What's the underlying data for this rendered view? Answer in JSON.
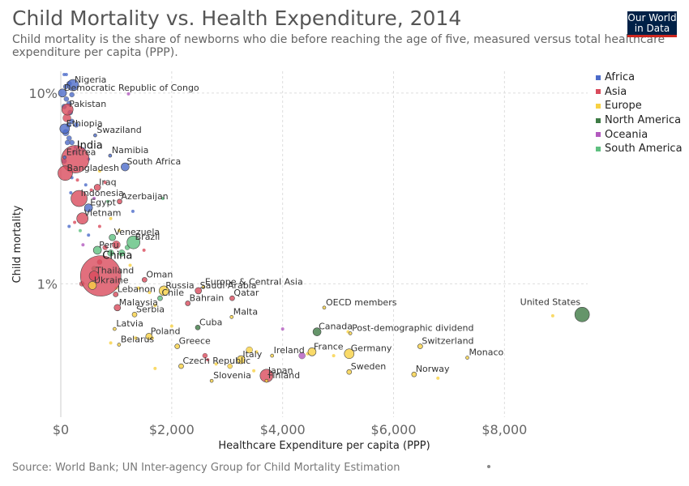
{
  "header": {
    "title": "Child Mortality vs. Health Expenditure, 2014",
    "subtitle": "Child mortality is the share of newborns who die before reaching the age of five, measured versus total healthcare expenditure per capita (PPP).",
    "logo_line1": "Our World",
    "logo_line2": "in Data"
  },
  "footer": {
    "source": "Source: World Bank; UN Inter-agency Group for Child Mortality Estimation"
  },
  "colors": {
    "Africa": "#4c6bc9",
    "Asia": "#d94b5c",
    "Europe": "#f7d143",
    "North America": "#3e7b45",
    "Oceania": "#b35abf",
    "South America": "#5fc080"
  },
  "chart_data": {
    "type": "scatter",
    "title": "Child Mortality vs. Health Expenditure, 2014",
    "xlabel": "Healthcare Expenditure per capita (PPP)",
    "ylabel": "Child mortality",
    "x_scale": "linear",
    "y_scale": "log",
    "xlim": [
      0,
      9500
    ],
    "ylim": [
      0.2,
      13
    ],
    "x_ticks": [
      "$0",
      "$2,000",
      "$4,000",
      "$6,000",
      "$8,000"
    ],
    "x_tick_values": [
      0,
      2000,
      4000,
      6000,
      8000
    ],
    "y_ticks": [
      "1%",
      "10%"
    ],
    "y_tick_values": [
      1,
      10
    ],
    "grid": true,
    "legend_position": "right",
    "legend": [
      "Africa",
      "Asia",
      "Europe",
      "North America",
      "Oceania",
      "South America"
    ],
    "points": [
      {
        "label": "Nigeria",
        "x": 220,
        "y": 11,
        "region": "Africa",
        "size": 7
      },
      {
        "label": "Democratic Republic of Congo",
        "x": 30,
        "y": 10,
        "region": "Africa",
        "size": 5
      },
      {
        "label": "Pakistan",
        "x": 120,
        "y": 8.2,
        "region": "Asia",
        "size": 7
      },
      {
        "label": "Ethiopia",
        "x": 70,
        "y": 6.5,
        "region": "Africa",
        "size": 6
      },
      {
        "label": "Swaziland",
        "x": 620,
        "y": 6.0,
        "region": "Africa",
        "size": 2
      },
      {
        "label": "India",
        "x": 260,
        "y": 4.5,
        "region": "Asia",
        "size": 17
      },
      {
        "label": "Namibia",
        "x": 890,
        "y": 4.7,
        "region": "Africa",
        "size": 2
      },
      {
        "label": "Eritrea",
        "x": 70,
        "y": 4.6,
        "region": "Africa",
        "size": 2
      },
      {
        "label": "South Africa",
        "x": 1160,
        "y": 4.1,
        "region": "Africa",
        "size": 5
      },
      {
        "label": "Bangladesh",
        "x": 80,
        "y": 3.8,
        "region": "Asia",
        "size": 9
      },
      {
        "label": "Iraq",
        "x": 660,
        "y": 3.2,
        "region": "Asia",
        "size": 4
      },
      {
        "label": "Indonesia",
        "x": 330,
        "y": 2.8,
        "region": "Asia",
        "size": 10
      },
      {
        "label": "Azerbaijan",
        "x": 1060,
        "y": 2.7,
        "region": "Asia",
        "size": 3
      },
      {
        "label": "Egypt",
        "x": 500,
        "y": 2.5,
        "region": "Africa",
        "size": 5
      },
      {
        "label": "Vietnam",
        "x": 390,
        "y": 2.2,
        "region": "Asia",
        "size": 7
      },
      {
        "label": "Venezuela",
        "x": 930,
        "y": 1.75,
        "region": "South America",
        "size": 4
      },
      {
        "label": "Peru",
        "x": 660,
        "y": 1.5,
        "region": "South America",
        "size": 5
      },
      {
        "label": "Brazil",
        "x": 1310,
        "y": 1.65,
        "region": "South America",
        "size": 8
      },
      {
        "label": "China",
        "x": 720,
        "y": 1.1,
        "region": "Asia",
        "size": 25
      },
      {
        "label": "Thailand",
        "x": 600,
        "y": 1.1,
        "region": "Asia",
        "size": 6
      },
      {
        "label": "Oman",
        "x": 1510,
        "y": 1.05,
        "region": "Asia",
        "size": 3
      },
      {
        "label": "Ukraine",
        "x": 570,
        "y": 0.98,
        "region": "Europe",
        "size": 5
      },
      {
        "label": "Europe & Central Asia",
        "x": 2570,
        "y": 0.96,
        "region": "Europe",
        "size": 2
      },
      {
        "label": "Russia",
        "x": 1860,
        "y": 0.92,
        "region": "Europe",
        "size": 6
      },
      {
        "label": "Saudi Arabia",
        "x": 2480,
        "y": 0.92,
        "region": "Asia",
        "size": 4
      },
      {
        "label": "Lebanon",
        "x": 990,
        "y": 0.88,
        "region": "Asia",
        "size": 3
      },
      {
        "label": "Chile",
        "x": 1790,
        "y": 0.84,
        "region": "South America",
        "size": 3
      },
      {
        "label": "Qatar",
        "x": 3090,
        "y": 0.84,
        "region": "Asia",
        "size": 3
      },
      {
        "label": "Bahrain",
        "x": 2290,
        "y": 0.79,
        "region": "Asia",
        "size": 3
      },
      {
        "label": "Malaysia",
        "x": 1020,
        "y": 0.75,
        "region": "Asia",
        "size": 4
      },
      {
        "label": "OECD members",
        "x": 4750,
        "y": 0.75,
        "region": "Europe",
        "size": 2
      },
      {
        "label": "Serbia",
        "x": 1330,
        "y": 0.69,
        "region": "Europe",
        "size": 3
      },
      {
        "label": "United States",
        "x": 9400,
        "y": 0.69,
        "region": "North America",
        "size": 9
      },
      {
        "label": "Malta",
        "x": 3080,
        "y": 0.67,
        "region": "Europe",
        "size": 2
      },
      {
        "label": "Latvia",
        "x": 970,
        "y": 0.58,
        "region": "Europe",
        "size": 2
      },
      {
        "label": "Cuba",
        "x": 2470,
        "y": 0.59,
        "region": "North America",
        "size": 3
      },
      {
        "label": "Canada",
        "x": 4620,
        "y": 0.56,
        "region": "North America",
        "size": 5
      },
      {
        "label": "Post-demographic dividend",
        "x": 5220,
        "y": 0.55,
        "region": "Europe",
        "size": 2
      },
      {
        "label": "Poland",
        "x": 1590,
        "y": 0.53,
        "region": "Europe",
        "size": 4
      },
      {
        "label": "Belarus",
        "x": 1050,
        "y": 0.48,
        "region": "Europe",
        "size": 2
      },
      {
        "label": "Greece",
        "x": 2100,
        "y": 0.47,
        "region": "Europe",
        "size": 3
      },
      {
        "label": "Switzerland",
        "x": 6480,
        "y": 0.47,
        "region": "Europe",
        "size": 3
      },
      {
        "label": "France",
        "x": 4530,
        "y": 0.44,
        "region": "Europe",
        "size": 5
      },
      {
        "label": "Germany",
        "x": 5200,
        "y": 0.43,
        "region": "Europe",
        "size": 6
      },
      {
        "label": "Ireland",
        "x": 3810,
        "y": 0.42,
        "region": "Europe",
        "size": 2
      },
      {
        "label": "Italy",
        "x": 3250,
        "y": 0.4,
        "region": "Europe",
        "size": 5
      },
      {
        "label": "Monaco",
        "x": 7330,
        "y": 0.41,
        "region": "Europe",
        "size": 2
      },
      {
        "label": "Czech Republic",
        "x": 2170,
        "y": 0.37,
        "region": "Europe",
        "size": 3
      },
      {
        "label": "Japan",
        "x": 3710,
        "y": 0.33,
        "region": "Asia",
        "size": 8
      },
      {
        "label": "Sweden",
        "x": 5200,
        "y": 0.345,
        "region": "Europe",
        "size": 3
      },
      {
        "label": "Norway",
        "x": 6370,
        "y": 0.335,
        "region": "Europe",
        "size": 3
      },
      {
        "label": "Slovenia",
        "x": 2720,
        "y": 0.31,
        "region": "Europe",
        "size": 2
      },
      {
        "label": "Finland",
        "x": 3710,
        "y": 0.31,
        "region": "Europe",
        "size": 2
      }
    ],
    "unlabeled_points": [
      {
        "x": 60,
        "y": 12.5,
        "region": "Africa",
        "size": 2
      },
      {
        "x": 100,
        "y": 12.5,
        "region": "Africa",
        "size": 2
      },
      {
        "x": 150,
        "y": 11.2,
        "region": "Africa",
        "size": 3
      },
      {
        "x": 90,
        "y": 10.8,
        "region": "Africa",
        "size": 3
      },
      {
        "x": 200,
        "y": 9.8,
        "region": "Africa",
        "size": 3
      },
      {
        "x": 100,
        "y": 9.3,
        "region": "Africa",
        "size": 3
      },
      {
        "x": 150,
        "y": 8.8,
        "region": "Africa",
        "size": 3
      },
      {
        "x": 60,
        "y": 8.5,
        "region": "Africa",
        "size": 3
      },
      {
        "x": 170,
        "y": 7.9,
        "region": "Africa",
        "size": 3
      },
      {
        "x": 110,
        "y": 7.4,
        "region": "Asia",
        "size": 5
      },
      {
        "x": 200,
        "y": 7.1,
        "region": "Africa",
        "size": 3
      },
      {
        "x": 280,
        "y": 6.8,
        "region": "Africa",
        "size": 3
      },
      {
        "x": 140,
        "y": 6.8,
        "region": "Africa",
        "size": 3
      },
      {
        "x": 90,
        "y": 6.2,
        "region": "Africa",
        "size": 4
      },
      {
        "x": 150,
        "y": 5.8,
        "region": "Africa",
        "size": 3
      },
      {
        "x": 200,
        "y": 5.5,
        "region": "Africa",
        "size": 3
      },
      {
        "x": 120,
        "y": 5.5,
        "region": "Africa",
        "size": 3
      },
      {
        "x": 260,
        "y": 5.2,
        "region": "Africa",
        "size": 2
      },
      {
        "x": 400,
        "y": 5.1,
        "region": "Africa",
        "size": 2
      },
      {
        "x": 250,
        "y": 4.9,
        "region": "Africa",
        "size": 3
      },
      {
        "x": 500,
        "y": 4.5,
        "region": "Africa",
        "size": 2
      },
      {
        "x": 60,
        "y": 4.4,
        "region": "Africa",
        "size": 3
      },
      {
        "x": 700,
        "y": 3.9,
        "region": "Europe",
        "size": 2
      },
      {
        "x": 200,
        "y": 3.6,
        "region": "Africa",
        "size": 2
      },
      {
        "x": 300,
        "y": 3.5,
        "region": "Asia",
        "size": 2
      },
      {
        "x": 450,
        "y": 3.3,
        "region": "Africa",
        "size": 2
      },
      {
        "x": 550,
        "y": 3.1,
        "region": "Asia",
        "size": 2
      },
      {
        "x": 800,
        "y": 3.4,
        "region": "Asia",
        "size": 2
      },
      {
        "x": 180,
        "y": 3.0,
        "region": "Africa",
        "size": 2
      },
      {
        "x": 600,
        "y": 2.8,
        "region": "Oceania",
        "size": 2
      },
      {
        "x": 850,
        "y": 2.7,
        "region": "South America",
        "size": 2
      },
      {
        "x": 1300,
        "y": 2.4,
        "region": "Africa",
        "size": 2
      },
      {
        "x": 900,
        "y": 2.2,
        "region": "Europe",
        "size": 2
      },
      {
        "x": 250,
        "y": 2.1,
        "region": "Asia",
        "size": 2
      },
      {
        "x": 150,
        "y": 2.0,
        "region": "Africa",
        "size": 2
      },
      {
        "x": 350,
        "y": 1.9,
        "region": "South America",
        "size": 2
      },
      {
        "x": 500,
        "y": 1.8,
        "region": "Africa",
        "size": 2
      },
      {
        "x": 700,
        "y": 2.0,
        "region": "Asia",
        "size": 2
      },
      {
        "x": 1050,
        "y": 1.9,
        "region": "Europe",
        "size": 2
      },
      {
        "x": 400,
        "y": 1.6,
        "region": "Oceania",
        "size": 2
      },
      {
        "x": 800,
        "y": 1.55,
        "region": "Asia",
        "size": 3
      },
      {
        "x": 1000,
        "y": 1.6,
        "region": "Asia",
        "size": 5
      },
      {
        "x": 1200,
        "y": 1.55,
        "region": "South America",
        "size": 3
      },
      {
        "x": 900,
        "y": 1.45,
        "region": "South America",
        "size": 4
      },
      {
        "x": 1100,
        "y": 1.45,
        "region": "South America",
        "size": 4
      },
      {
        "x": 1500,
        "y": 1.5,
        "region": "Asia",
        "size": 2
      },
      {
        "x": 700,
        "y": 1.3,
        "region": "Asia",
        "size": 3
      },
      {
        "x": 1250,
        "y": 1.25,
        "region": "Europe",
        "size": 2
      },
      {
        "x": 600,
        "y": 1.2,
        "region": "South America",
        "size": 3
      },
      {
        "x": 380,
        "y": 1.0,
        "region": "Asia",
        "size": 3
      },
      {
        "x": 1000,
        "y": 0.95,
        "region": "Europe",
        "size": 2
      },
      {
        "x": 1400,
        "y": 0.95,
        "region": "Europe",
        "size": 2
      },
      {
        "x": 1600,
        "y": 0.9,
        "region": "Europe",
        "size": 2
      },
      {
        "x": 1700,
        "y": 0.77,
        "region": "Europe",
        "size": 2
      },
      {
        "x": 2000,
        "y": 0.6,
        "region": "Europe",
        "size": 2
      },
      {
        "x": 1350,
        "y": 0.52,
        "region": "Europe",
        "size": 2
      },
      {
        "x": 900,
        "y": 0.49,
        "region": "Europe",
        "size": 2
      },
      {
        "x": 1700,
        "y": 0.36,
        "region": "Europe",
        "size": 2
      },
      {
        "x": 1650,
        "y": 0.52,
        "region": "Europe",
        "size": 2
      },
      {
        "x": 2600,
        "y": 0.42,
        "region": "Asia",
        "size": 3
      },
      {
        "x": 2650,
        "y": 0.4,
        "region": "Asia",
        "size": 2
      },
      {
        "x": 2800,
        "y": 0.38,
        "region": "Europe",
        "size": 2
      },
      {
        "x": 3400,
        "y": 0.45,
        "region": "Europe",
        "size": 4
      },
      {
        "x": 3530,
        "y": 0.44,
        "region": "Europe",
        "size": 2
      },
      {
        "x": 3050,
        "y": 0.37,
        "region": "Europe",
        "size": 3
      },
      {
        "x": 3480,
        "y": 0.35,
        "region": "Europe",
        "size": 2
      },
      {
        "x": 4000,
        "y": 0.58,
        "region": "Oceania",
        "size": 2
      },
      {
        "x": 4350,
        "y": 0.42,
        "region": "Oceania",
        "size": 4
      },
      {
        "x": 4450,
        "y": 0.43,
        "region": "Europe",
        "size": 2
      },
      {
        "x": 4920,
        "y": 0.42,
        "region": "Europe",
        "size": 2
      },
      {
        "x": 5180,
        "y": 0.56,
        "region": "Europe",
        "size": 2
      },
      {
        "x": 6800,
        "y": 0.32,
        "region": "Europe",
        "size": 2
      },
      {
        "x": 8870,
        "y": 0.68,
        "region": "Europe",
        "size": 2
      },
      {
        "x": 1220,
        "y": 9.9,
        "region": "Oceania",
        "size": 2
      },
      {
        "x": 1840,
        "y": 2.8,
        "region": "South America",
        "size": 2
      }
    ]
  }
}
